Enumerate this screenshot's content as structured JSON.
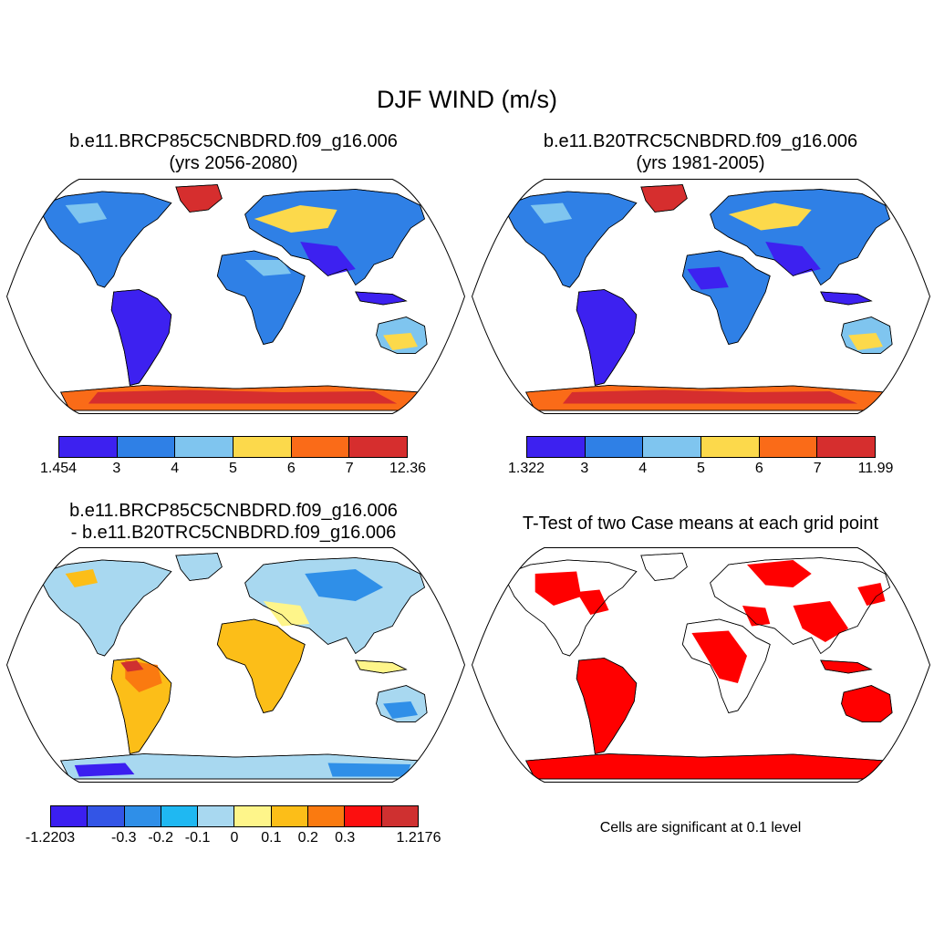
{
  "figure": {
    "title": "DJF WIND (m/s)"
  },
  "panels": [
    {
      "id": "future",
      "title_line1": "b.e11.BRCP85C5CNBDRD.f09_g16.006",
      "title_line2": "(yrs 2056-2080)",
      "colorbar": {
        "colors": [
          "#3d21f0",
          "#2f80e6",
          "#7fc5ef",
          "#fcd94b",
          "#fa6b18",
          "#d62e2e"
        ],
        "labels": [
          "1.454",
          "3",
          "4",
          "5",
          "6",
          "7",
          "12.36"
        ]
      }
    },
    {
      "id": "historical",
      "title_line1": "b.e11.B20TRC5CNBDRD.f09_g16.006",
      "title_line2": "(yrs 1981-2005)",
      "colorbar": {
        "colors": [
          "#3d21f0",
          "#2f80e6",
          "#7fc5ef",
          "#fcd94b",
          "#fa6b18",
          "#d62e2e"
        ],
        "labels": [
          "1.322",
          "3",
          "4",
          "5",
          "6",
          "7",
          "11.99"
        ]
      }
    },
    {
      "id": "difference",
      "title_line1": "b.e11.BRCP85C5CNBDRD.f09_g16.006",
      "title_line2": "- b.e11.B20TRC5CNBDRD.f09_g16.006",
      "colorbar": {
        "colors": [
          "#3b1ff0",
          "#3355e6",
          "#2f8fe8",
          "#1fb8f2",
          "#a8d8f0",
          "#fef58a",
          "#fcbe18",
          "#fa7a10",
          "#fc0f0f",
          "#cf3030"
        ],
        "labels": [
          "-1.2203",
          "-0.3",
          "-0.2",
          "-0.1",
          "0",
          "0.1",
          "0.2",
          "0.3",
          "1.2176"
        ]
      }
    },
    {
      "id": "ttest",
      "title_line1": "T-Test of two Case means at each grid point",
      "note": "Cells are significant at 0.1 level",
      "sig_color": "#ff0000"
    }
  ]
}
